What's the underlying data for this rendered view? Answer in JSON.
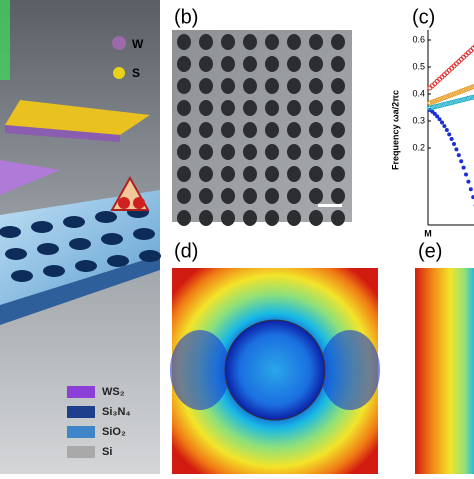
{
  "panels": {
    "a": {
      "legend_top": [
        "W",
        "S"
      ],
      "legend_bottom": [
        "WS₂",
        "Si₃N₄",
        "SiO₂",
        "Si"
      ]
    },
    "b": {
      "label": "(b)"
    },
    "c": {
      "label": "(c)",
      "ylabel": "Frequency ωa/2πc",
      "yticks": [
        0.6,
        0.5,
        0.4,
        0.3,
        0.2
      ],
      "xlabel": "M"
    },
    "d": {
      "label": "(d)"
    },
    "e": {
      "label": "(e)"
    }
  }
}
